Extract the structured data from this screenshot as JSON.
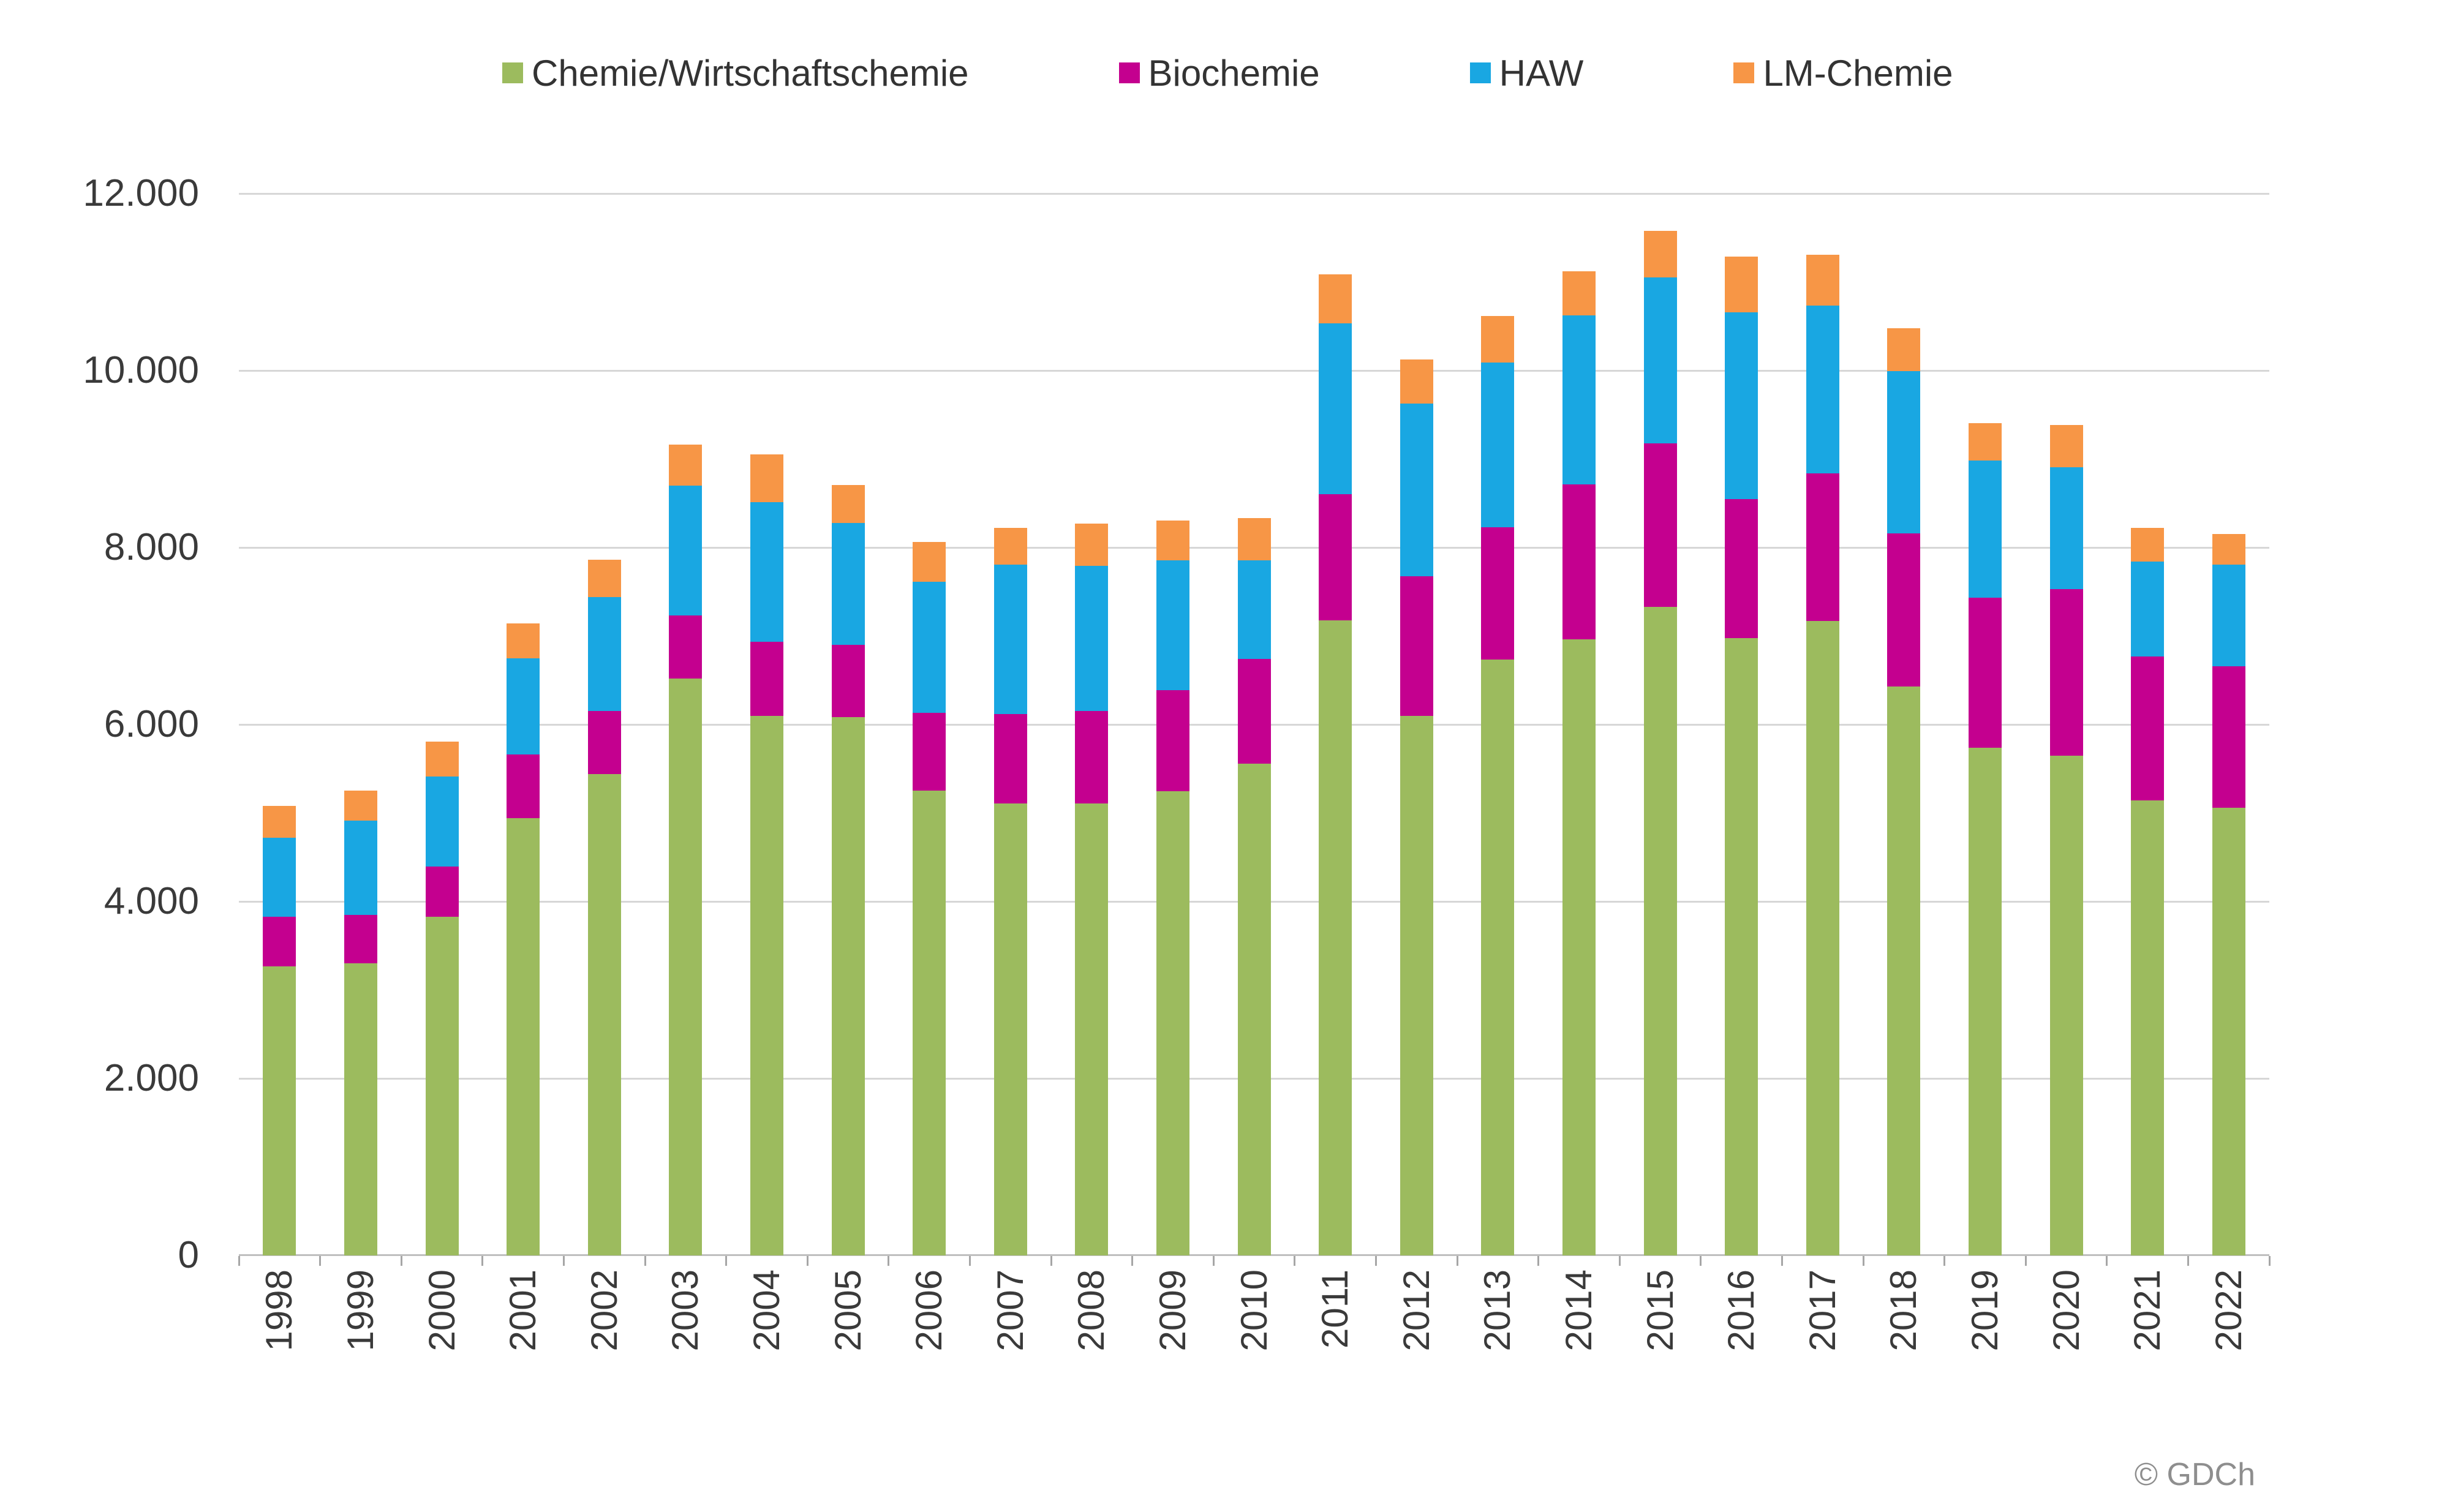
{
  "chart_data": {
    "type": "bar",
    "stacked": true,
    "title": "",
    "xlabel": "",
    "ylabel": "",
    "ylim": [
      0,
      12000
    ],
    "grid": true,
    "legend_position": "top",
    "categories": [
      "1998",
      "1999",
      "2000",
      "2001",
      "2002",
      "2003",
      "2004",
      "2005",
      "2006",
      "2007",
      "2008",
      "2009",
      "2010",
      "2011",
      "2012",
      "2013",
      "2014",
      "2015",
      "2016",
      "2017",
      "2018",
      "2019",
      "2020",
      "2021",
      "2022"
    ],
    "y_ticks": {
      "values": [
        0,
        2000,
        4000,
        6000,
        8000,
        10000,
        12000
      ],
      "labels": [
        "0",
        "2.000",
        "4.000",
        "6.000",
        "8.000",
        "10.000",
        "12.000"
      ]
    },
    "series": [
      {
        "name": "Chemie/Wirtschaftschemie",
        "color": "#9CBB5E",
        "values": [
          3270,
          3300,
          3830,
          4940,
          5440,
          6520,
          6100,
          6080,
          5250,
          5110,
          5110,
          5245,
          5560,
          7180,
          6100,
          6735,
          6960,
          7330,
          6975,
          7170,
          6430,
          5740,
          5645,
          5140,
          5060
        ]
      },
      {
        "name": "Biochemie",
        "color": "#C4008F",
        "values": [
          555,
          545,
          565,
          720,
          710,
          710,
          835,
          820,
          880,
          1005,
          1040,
          1140,
          1180,
          1420,
          1575,
          1495,
          1750,
          1850,
          1575,
          1665,
          1730,
          1690,
          1885,
          1630,
          1600
        ]
      },
      {
        "name": "HAW",
        "color": "#19A7E2",
        "values": [
          895,
          1070,
          1015,
          1090,
          1290,
          1470,
          1580,
          1375,
          1485,
          1690,
          1645,
          1470,
          1115,
          1930,
          1950,
          1860,
          1910,
          1870,
          2105,
          1900,
          1830,
          1555,
          1375,
          1070,
          1145
        ]
      },
      {
        "name": "LM-Chemie",
        "color": "#F79646",
        "values": [
          360,
          340,
          395,
          395,
          420,
          465,
          535,
          430,
          450,
          420,
          475,
          450,
          480,
          560,
          500,
          525,
          500,
          530,
          635,
          575,
          485,
          420,
          480,
          380,
          350
        ]
      }
    ]
  },
  "footer": {
    "copyright": "© GDCh"
  }
}
